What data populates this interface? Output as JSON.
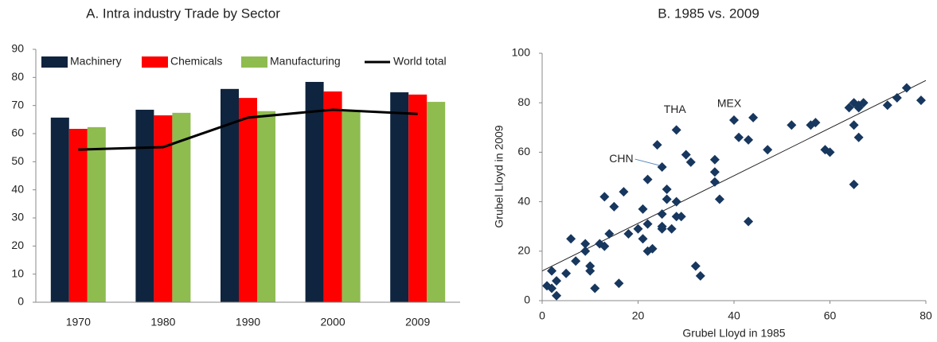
{
  "chart_data": [
    {
      "type": "bar",
      "title": "A. Intra industry Trade by Sector",
      "categories": [
        "1970",
        "1980",
        "1990",
        "2000",
        "2009"
      ],
      "series": [
        {
          "name": "Machinery",
          "color": "#0f243e",
          "values": [
            65.7,
            68.5,
            75.9,
            78.4,
            74.7
          ]
        },
        {
          "name": "Chemicals",
          "color": "#ff0000",
          "values": [
            61.7,
            66.5,
            72.7,
            75,
            73.9
          ]
        },
        {
          "name": "Manufacturing",
          "color": "#8fbc4f",
          "values": [
            62.3,
            67.4,
            68,
            68,
            71.3
          ]
        },
        {
          "name": "World total",
          "color": "#000000",
          "type": "line",
          "values": [
            54.3,
            55.2,
            65.7,
            68.5,
            67
          ]
        }
      ],
      "ylim": [
        0,
        90
      ],
      "yticks": [
        0,
        10,
        20,
        30,
        40,
        50,
        60,
        70,
        80,
        90
      ],
      "legend": "top",
      "grid": false
    },
    {
      "type": "scatter",
      "title": "B. 1985 vs. 2009",
      "x_label": "Grubel Lloyd in 1985",
      "y_label": "Grubel Lloyd in 2009",
      "color": "#17375e",
      "x": [
        1,
        2,
        2,
        3,
        3,
        5,
        6,
        7,
        9,
        9,
        10,
        10,
        11,
        12,
        13,
        13,
        14,
        15,
        16,
        17,
        18,
        20,
        21,
        21,
        22,
        22,
        22,
        23,
        24,
        25,
        25,
        25,
        25,
        26,
        26,
        27,
        28,
        28,
        28,
        29,
        30,
        31,
        32,
        33,
        36,
        36,
        36,
        37,
        40,
        41,
        43,
        43,
        44,
        47,
        52,
        56,
        57,
        59,
        60,
        64,
        65,
        65,
        65,
        66,
        66,
        66,
        67,
        72,
        74,
        76,
        79
      ],
      "values": [
        6,
        12,
        5,
        2,
        8,
        11,
        25,
        16,
        20,
        23,
        14,
        12,
        5,
        23,
        22,
        42,
        27,
        38,
        7,
        44,
        27,
        29,
        25,
        37,
        31,
        20,
        49,
        21,
        63,
        30,
        54,
        29,
        35,
        45,
        41,
        29,
        40,
        34,
        69,
        34,
        59,
        56,
        14,
        10,
        57,
        52,
        48,
        41,
        73,
        66,
        65,
        32,
        74,
        61,
        71,
        71,
        72,
        61,
        60,
        78,
        80,
        71,
        47,
        66,
        79,
        78,
        80,
        79,
        82,
        86,
        81
      ],
      "trendline": {
        "x": [
          0,
          80
        ],
        "values": [
          12,
          89
        ]
      },
      "annotations": [
        {
          "text": "THA",
          "x": 28,
          "y": 69
        },
        {
          "text": "MEX",
          "x": 40,
          "y": 73
        },
        {
          "text": "CHN",
          "x": 25,
          "y": 54
        }
      ],
      "xlim": [
        0,
        80
      ],
      "xticks": [
        0,
        20,
        40,
        60,
        80
      ],
      "ylim": [
        0,
        100
      ],
      "yticks": [
        0,
        20,
        40,
        60,
        80,
        100
      ]
    }
  ]
}
